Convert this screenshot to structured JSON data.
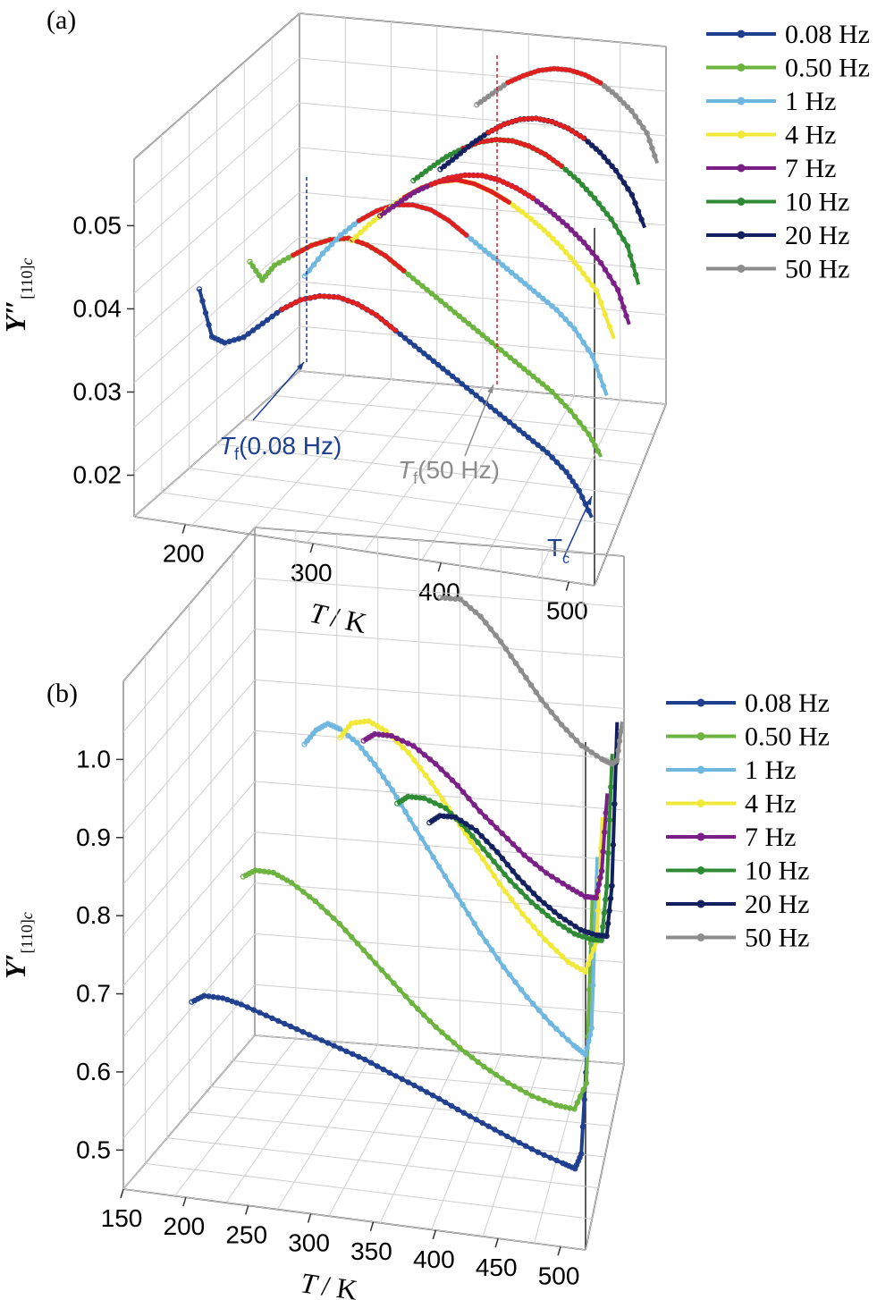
{
  "chart_data": [
    {
      "panel": "(a)",
      "type": "line",
      "xlabel_T": "T",
      "xlabel_unit": "/ K",
      "ylabel_main": "Y″",
      "ylabel_sub": "[110]",
      "ylabel_italic_sub": "c",
      "x_ticks": [
        "200",
        "300",
        "400",
        "500"
      ],
      "y_ticks": [
        "0.02",
        "0.03",
        "0.04",
        "0.05"
      ],
      "xlim": [
        160,
        520
      ],
      "ylim": [
        0.015,
        0.058
      ],
      "grid": true,
      "legend_placement": "right",
      "series": [
        {
          "name": "0.08 Hz",
          "color": "#1f3f8f",
          "x": [
            205,
            215,
            225,
            240,
            255,
            270,
            285,
            300,
            315,
            330,
            345,
            360,
            375,
            390,
            405,
            420,
            435,
            450,
            465,
            480,
            495,
            505,
            515
          ],
          "values": [
            0.0425,
            0.037,
            0.0365,
            0.0375,
            0.0395,
            0.0415,
            0.043,
            0.0438,
            0.044,
            0.0435,
            0.0425,
            0.041,
            0.0395,
            0.038,
            0.0365,
            0.035,
            0.0335,
            0.032,
            0.0305,
            0.029,
            0.027,
            0.025,
            0.022
          ]
        },
        {
          "name": "0.50 Hz",
          "color": "#6cb33f",
          "x": [
            230,
            240,
            250,
            265,
            280,
            295,
            310,
            325,
            340,
            355,
            370,
            385,
            400,
            415,
            430,
            445,
            460,
            475,
            490,
            505,
            515
          ],
          "values": [
            0.044,
            0.042,
            0.044,
            0.0455,
            0.047,
            0.048,
            0.0485,
            0.048,
            0.047,
            0.0455,
            0.044,
            0.0425,
            0.041,
            0.0395,
            0.038,
            0.0365,
            0.035,
            0.0335,
            0.0315,
            0.029,
            0.0265
          ]
        },
        {
          "name": "1 Hz",
          "color": "#6fb7de",
          "x": [
            260,
            275,
            290,
            305,
            320,
            335,
            350,
            365,
            380,
            395,
            410,
            425,
            440,
            455,
            470,
            485,
            500,
            512
          ],
          "values": [
            0.0405,
            0.0435,
            0.046,
            0.048,
            0.0495,
            0.0505,
            0.0508,
            0.0505,
            0.0495,
            0.048,
            0.0465,
            0.045,
            0.0435,
            0.042,
            0.0405,
            0.0385,
            0.0355,
            0.031
          ]
        },
        {
          "name": "4 Hz",
          "color": "#f1e93a",
          "x": [
            285,
            300,
            315,
            330,
            345,
            360,
            375,
            390,
            405,
            420,
            435,
            450,
            465,
            480,
            495,
            510
          ],
          "values": [
            0.0428,
            0.045,
            0.047,
            0.0488,
            0.0502,
            0.0512,
            0.0517,
            0.0515,
            0.0508,
            0.0498,
            0.0485,
            0.047,
            0.0452,
            0.043,
            0.0405,
            0.035
          ]
        },
        {
          "name": "7 Hz",
          "color": "#7a1f86",
          "x": [
            295,
            310,
            325,
            340,
            355,
            370,
            385,
            400,
            415,
            430,
            445,
            460,
            475,
            490,
            505,
            515
          ],
          "values": [
            0.0435,
            0.0452,
            0.0468,
            0.048,
            0.049,
            0.0496,
            0.0498,
            0.0495,
            0.0488,
            0.0478,
            0.0465,
            0.045,
            0.0432,
            0.041,
            0.038,
            0.034
          ]
        },
        {
          "name": "10 Hz",
          "color": "#2e8b34",
          "x": [
            310,
            325,
            340,
            355,
            370,
            385,
            400,
            415,
            430,
            445,
            460,
            475,
            490,
            505,
            515
          ],
          "values": [
            0.0455,
            0.0472,
            0.0488,
            0.05,
            0.051,
            0.0515,
            0.0516,
            0.0512,
            0.0504,
            0.0492,
            0.0477,
            0.0458,
            0.0435,
            0.0405,
            0.036
          ]
        },
        {
          "name": "20 Hz",
          "color": "#13205f",
          "x": [
            320,
            335,
            350,
            365,
            380,
            395,
            410,
            425,
            440,
            455,
            470,
            485,
            500,
            512
          ],
          "values": [
            0.0445,
            0.0462,
            0.048,
            0.0495,
            0.0507,
            0.0515,
            0.0518,
            0.0516,
            0.051,
            0.05,
            0.0485,
            0.0465,
            0.0438,
            0.04
          ]
        },
        {
          "name": "50 Hz",
          "color": "#8c8c8c",
          "x": [
            340,
            355,
            370,
            385,
            400,
            415,
            430,
            445,
            460,
            475,
            490,
            505,
            515
          ],
          "values": [
            0.05,
            0.0515,
            0.053,
            0.054,
            0.0548,
            0.0552,
            0.0552,
            0.0548,
            0.054,
            0.0527,
            0.051,
            0.0485,
            0.045
          ]
        }
      ],
      "annotations": [
        {
          "base": "T",
          "sub": "f",
          "rest": "(0.08 Hz)",
          "color": "#1f3f8f"
        },
        {
          "base": "T",
          "sub": "f",
          "rest": "(50 Hz)",
          "color": "#8c8c8c"
        },
        {
          "base": "T",
          "sub": "c",
          "rest": "",
          "color": "#1f3f8f"
        }
      ]
    },
    {
      "panel": "(b)",
      "type": "line",
      "xlabel_T": "T",
      "xlabel_unit": "/ K",
      "ylabel_main": "Y′",
      "ylabel_sub": "[110]",
      "ylabel_italic_sub": "c",
      "x_ticks": [
        "150",
        "200",
        "250",
        "300",
        "350",
        "400",
        "450",
        "500"
      ],
      "y_ticks": [
        "0.5",
        "0.6",
        "0.7",
        "0.8",
        "0.9",
        "1.0"
      ],
      "xlim": [
        150,
        520
      ],
      "ylim": [
        0.45,
        1.1
      ],
      "grid": true,
      "legend_placement": "right",
      "series": [
        {
          "name": "0.08 Hz",
          "color": "#1f3f8f",
          "x": [
            200,
            210,
            225,
            240,
            260,
            280,
            300,
            320,
            340,
            360,
            380,
            400,
            420,
            440,
            460,
            480,
            500,
            510,
            515,
            520
          ],
          "values": [
            0.69,
            0.7,
            0.7,
            0.695,
            0.685,
            0.675,
            0.665,
            0.655,
            0.645,
            0.632,
            0.62,
            0.607,
            0.593,
            0.58,
            0.567,
            0.555,
            0.545,
            0.54,
            0.56,
            0.7
          ]
        },
        {
          "name": "0.50 Hz",
          "color": "#6cb33f",
          "x": [
            230,
            240,
            255,
            270,
            290,
            310,
            330,
            350,
            370,
            390,
            410,
            430,
            450,
            470,
            490,
            505,
            515,
            520
          ],
          "values": [
            0.83,
            0.84,
            0.84,
            0.83,
            0.81,
            0.785,
            0.755,
            0.725,
            0.695,
            0.668,
            0.645,
            0.625,
            0.608,
            0.595,
            0.587,
            0.585,
            0.62,
            0.86
          ]
        },
        {
          "name": "1 Hz",
          "color": "#6fb7de",
          "x": [
            270,
            280,
            290,
            300,
            315,
            330,
            345,
            360,
            380,
            400,
            420,
            440,
            460,
            480,
            500,
            510,
            515,
            520
          ],
          "values": [
            0.98,
            1.0,
            1.01,
            1.005,
            0.99,
            0.965,
            0.935,
            0.9,
            0.855,
            0.81,
            0.765,
            0.725,
            0.69,
            0.66,
            0.635,
            0.625,
            0.66,
            0.88
          ]
        },
        {
          "name": "4 Hz",
          "color": "#f1e93a",
          "x": [
            290,
            300,
            315,
            330,
            350,
            370,
            390,
            410,
            430,
            450,
            470,
            490,
            505,
            515,
            520
          ],
          "values": [
            0.965,
            0.985,
            0.99,
            0.98,
            0.955,
            0.92,
            0.88,
            0.84,
            0.8,
            0.765,
            0.735,
            0.71,
            0.7,
            0.74,
            0.9
          ]
        },
        {
          "name": "7 Hz",
          "color": "#7a1f86",
          "x": [
            300,
            310,
            325,
            345,
            365,
            385,
            405,
            425,
            445,
            465,
            485,
            500,
            510,
            515,
            520
          ],
          "values": [
            0.935,
            0.945,
            0.945,
            0.935,
            0.915,
            0.89,
            0.86,
            0.835,
            0.81,
            0.79,
            0.775,
            0.765,
            0.765,
            0.8,
            0.9
          ]
        },
        {
          "name": "10 Hz",
          "color": "#2e8b34",
          "x": [
            320,
            330,
            345,
            365,
            385,
            405,
            425,
            445,
            465,
            485,
            500,
            510,
            515,
            520
          ],
          "values": [
            0.83,
            0.84,
            0.84,
            0.83,
            0.805,
            0.775,
            0.745,
            0.72,
            0.7,
            0.685,
            0.68,
            0.68,
            0.75,
            0.92
          ]
        },
        {
          "name": "20 Hz",
          "color": "#13205f",
          "x": [
            340,
            350,
            365,
            385,
            405,
            425,
            445,
            465,
            485,
            500,
            510,
            515,
            520
          ],
          "values": [
            0.78,
            0.79,
            0.79,
            0.775,
            0.75,
            0.72,
            0.695,
            0.675,
            0.66,
            0.655,
            0.655,
            0.72,
            0.93
          ]
        },
        {
          "name": "50 Hz",
          "color": "#8c8c8c",
          "x": [
            340,
            360,
            380,
            400,
            420,
            440,
            460,
            480,
            500,
            510,
            515,
            520
          ],
          "values": [
            1.04,
            1.04,
            1.02,
            0.99,
            0.955,
            0.92,
            0.89,
            0.865,
            0.85,
            0.845,
            0.85,
            0.9
          ]
        }
      ]
    }
  ]
}
